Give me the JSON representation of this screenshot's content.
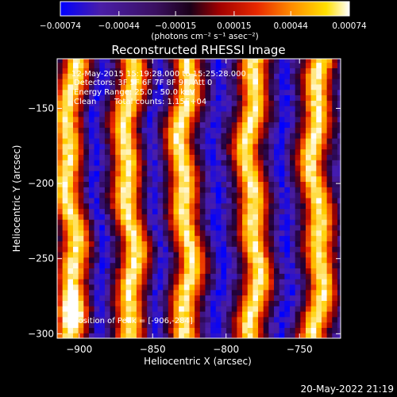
{
  "chart_data": {
    "type": "heatmap",
    "title": "Reconstructed RHESSI Image",
    "xlabel": "Heliocentric X (arcsec)",
    "ylabel": "Heliocentric Y (arcsec)",
    "xlim": [
      -915,
      -722
    ],
    "ylim": [
      -303,
      -117
    ],
    "xticks": [
      -900,
      -850,
      -800,
      -750
    ],
    "yticks": [
      -150,
      -200,
      -250,
      -300
    ],
    "xtick_labels": [
      "−900",
      "−850",
      "−800",
      "−750"
    ],
    "ytick_labels": [
      "−150",
      "−200",
      "−250",
      "−300"
    ],
    "colorbar": {
      "min": -0.00074,
      "max": 0.00074,
      "tick_values": [
        -0.00074,
        -0.00044,
        -0.00015,
        0.00015,
        0.00044,
        0.00074
      ],
      "tick_labels": [
        "−0.00074",
        "−0.00044",
        "−0.00015",
        "0.00015",
        "0.00044",
        "0.00074"
      ],
      "units": "(photons cm⁻² s⁻¹ asec⁻²)",
      "colormap": [
        "#0000ff",
        "#4a1ea8",
        "#200030",
        "#a00000",
        "#e82800",
        "#ff8c00",
        "#ffd000",
        "#ffffff"
      ]
    },
    "annotations": {
      "time_range": "12-May-2015 15:19:28.000 to 15:25:28.000",
      "detectors": "Detectors: 3F 5F 6F 7F 8F 9F, Att 0",
      "energy_range": "Energy Range: 25.0 - 50.0 keV",
      "method": "Clean",
      "total_counts": "Total counts: 1.15E+04",
      "peak": "Position of Peak = [-906,-284]"
    },
    "peak_position": [
      -906,
      -284
    ],
    "pattern": {
      "description": "fringe modulation, intensity vs X",
      "bright_band_centers_x": [
        -906,
        -866,
        -828,
        -782,
        -738
      ],
      "dark_band_centers_x": [
        -887,
        -848,
        -806,
        -760
      ],
      "band_halfwidth_arcsec": 9
    }
  },
  "footer": {
    "timestamp": "20-May-2022 21:19"
  }
}
